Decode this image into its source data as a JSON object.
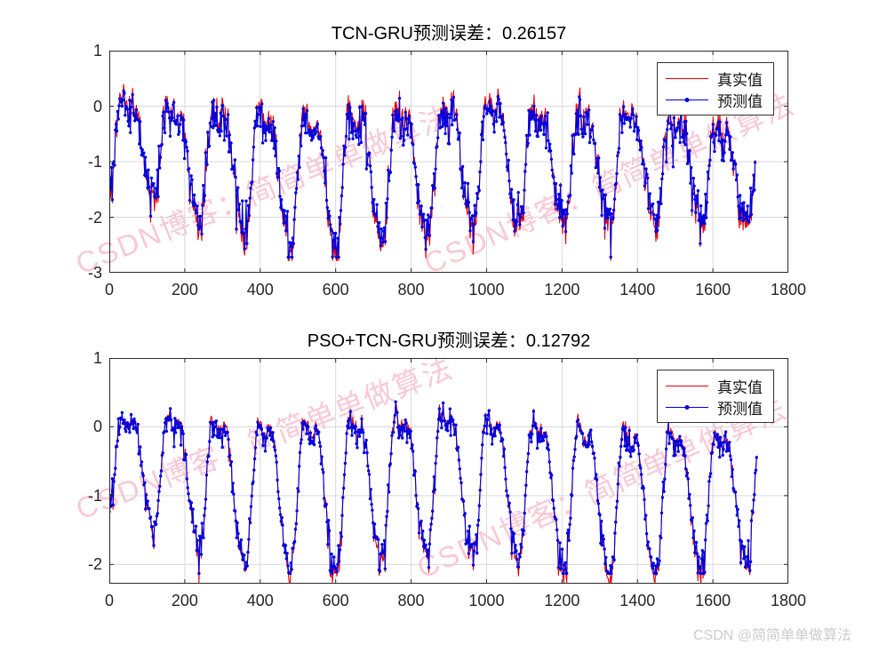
{
  "watermark": {
    "text": "CSDN博客：简简单单做算法",
    "color": "#f27e9e"
  },
  "footer": {
    "text": "CSDN @简简单单做算法",
    "color": "#cccccc"
  },
  "colors": {
    "grid": "#d9d9d9",
    "axis": "#2a2a2a",
    "true_line": "#e60000",
    "pred_line": "#0000dd"
  },
  "chart_data": [
    {
      "type": "line",
      "title": "TCN-GRU预测误差：0.26157",
      "xlabel": "",
      "ylabel": "",
      "xlim": [
        0,
        1800
      ],
      "x_ticks": [
        0,
        200,
        400,
        600,
        800,
        1000,
        1200,
        1400,
        1600,
        1800
      ],
      "ylim": [
        -3,
        1
      ],
      "y_ticks": [
        1,
        0,
        -1,
        -2,
        -3
      ],
      "grid": true,
      "legend_position": "top-right",
      "series": [
        {
          "name": "真实值",
          "color": "#e60000",
          "marker": "none",
          "role": "true"
        },
        {
          "name": "预测值",
          "color": "#0000dd",
          "marker": "dot",
          "role": "pred"
        }
      ],
      "series_spec": {
        "seed": 20257,
        "n_points": 860,
        "x_end": 1712,
        "period": 121,
        "phase": -1.05,
        "harm2": 0.26,
        "harm3": 0.14,
        "anchors_x": [
          0,
          150,
          300,
          450,
          600,
          750,
          900,
          1050,
          1200,
          1350,
          1500,
          1712
        ],
        "mean_anchors": [
          -0.5,
          -0.72,
          -1.0,
          -1.1,
          -1.15,
          -1.1,
          -0.95,
          -0.8,
          -1.05,
          -0.92,
          -1.02,
          -1.15
        ],
        "amp_anchors": [
          0.78,
          0.92,
          1.1,
          1.2,
          1.22,
          1.18,
          1.12,
          1.18,
          0.85,
          1.05,
          0.95,
          0.72
        ],
        "noise_sd": 0.2,
        "spike_prob": 0.12,
        "spike_mag": 0.32,
        "pred_compress": 0.9,
        "pred_noise_sd": 0.05,
        "clamp_true": [
          -2.78,
          0.58
        ],
        "clamp_pred": [
          -2.72,
          0.55
        ]
      }
    },
    {
      "type": "line",
      "title": "PSO+TCN-GRU预测误差：0.12792",
      "xlabel": "",
      "ylabel": "",
      "xlim": [
        0,
        1800
      ],
      "x_ticks": [
        0,
        200,
        400,
        600,
        800,
        1000,
        1200,
        1400,
        1600,
        1800
      ],
      "ylim": [
        -2.28,
        1
      ],
      "y_ticks": [
        1,
        0,
        -1,
        -2
      ],
      "grid": true,
      "legend_position": "top-right",
      "series": [
        {
          "name": "真实值",
          "color": "#e60000",
          "marker": "none",
          "role": "true"
        },
        {
          "name": "预测值",
          "color": "#0000dd",
          "marker": "dot",
          "role": "pred"
        }
      ],
      "series_spec": {
        "seed": 99031,
        "n_points": 860,
        "x_end": 1716,
        "period": 121,
        "phase": -1.05,
        "harm2": 0.26,
        "harm3": 0.14,
        "anchors_x": [
          0,
          150,
          300,
          450,
          600,
          750,
          900,
          1050,
          1200,
          1350,
          1500,
          1716
        ],
        "mean_anchors": [
          -0.4,
          -0.55,
          -0.75,
          -0.85,
          -0.8,
          -0.7,
          -0.65,
          -0.72,
          -0.85,
          -0.95,
          -0.9,
          -0.85
        ],
        "amp_anchors": [
          0.62,
          0.85,
          1.0,
          1.08,
          1.08,
          1.0,
          0.98,
          1.02,
          1.02,
          1.08,
          1.0,
          0.88
        ],
        "noise_sd": 0.085,
        "spike_prob": 0.2,
        "spike_mag": 0.3,
        "pred_compress": 0.95,
        "pred_noise_sd": 0.035,
        "clamp_true": [
          -2.27,
          0.55
        ],
        "clamp_pred": [
          -2.13,
          0.52
        ]
      }
    }
  ]
}
